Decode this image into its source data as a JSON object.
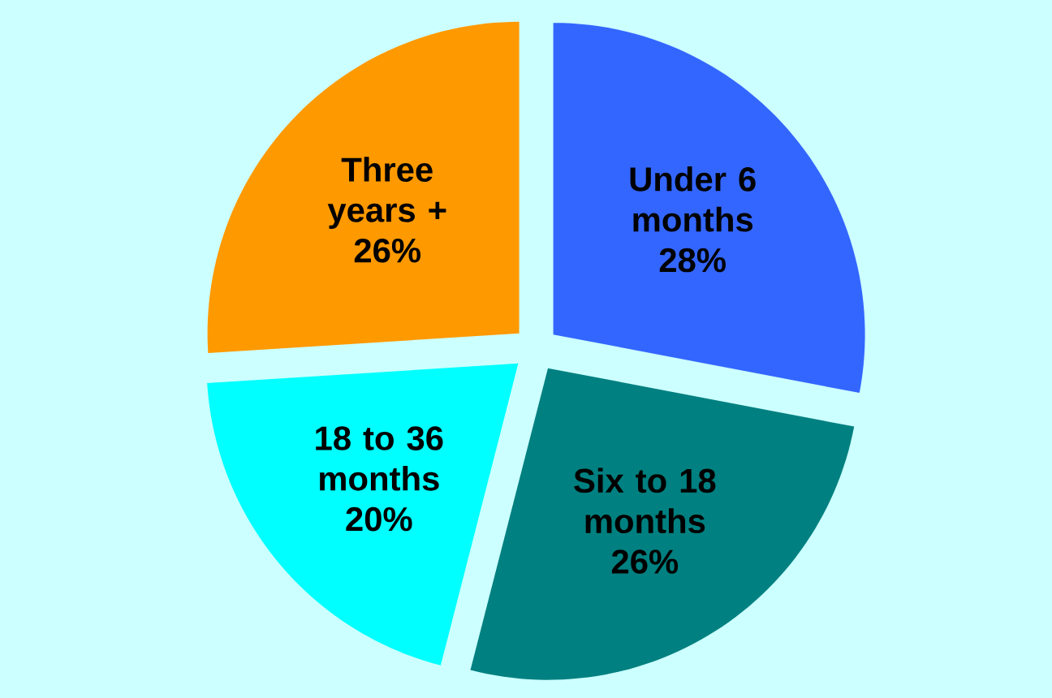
{
  "chart_data": {
    "type": "pie",
    "categories": [
      "Under 6 months",
      "Six to 18 months",
      "18 to 36 months",
      "Three years +"
    ],
    "values": [
      28,
      26,
      20,
      26
    ],
    "value_labels": [
      "28%",
      "26%",
      "20%",
      "26%"
    ],
    "colors": [
      "#3366ff",
      "#008080",
      "#00ffff",
      "#ff9900"
    ]
  }
}
